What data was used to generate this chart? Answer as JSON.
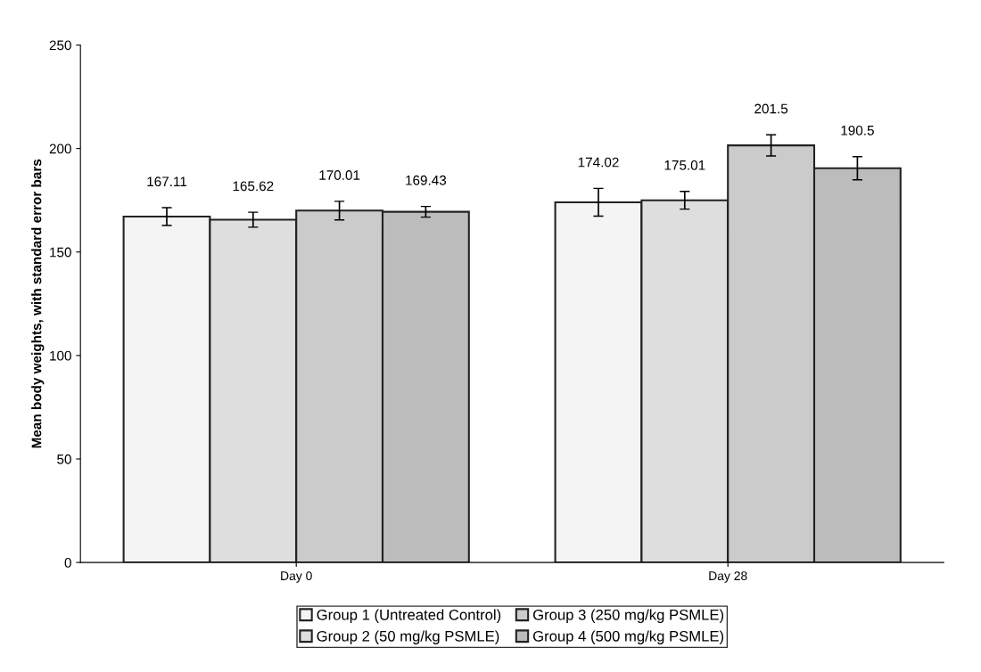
{
  "chart_data": {
    "type": "bar",
    "ylabel": "Mean body weights, with standard error bars",
    "categories": [
      "Day 0",
      "Day 28"
    ],
    "series": [
      {
        "name": "Group 1 (Untreated Control)",
        "color": "#f4f4f4",
        "values": [
          167.11,
          174.02
        ],
        "errors": [
          4.3,
          6.7
        ]
      },
      {
        "name": "Group 2 (50 mg/kg PSMLE)",
        "color": "#dedede",
        "values": [
          165.62,
          175.01
        ],
        "errors": [
          3.6,
          4.3
        ]
      },
      {
        "name": "Group 3 (250 mg/kg PSMLE)",
        "color": "#cbcbcb",
        "values": [
          170.01,
          201.5
        ],
        "errors": [
          4.5,
          5.1
        ]
      },
      {
        "name": "Group 4 (500 mg/kg PSMLE)",
        "color": "#bcbcbc",
        "values": [
          169.43,
          190.5
        ],
        "errors": [
          2.6,
          5.6
        ]
      }
    ],
    "ylim": [
      0,
      250
    ],
    "yticks": [
      0,
      50,
      100,
      150,
      200,
      250
    ],
    "data_labels": true,
    "grid": false,
    "legend": "bottom"
  }
}
